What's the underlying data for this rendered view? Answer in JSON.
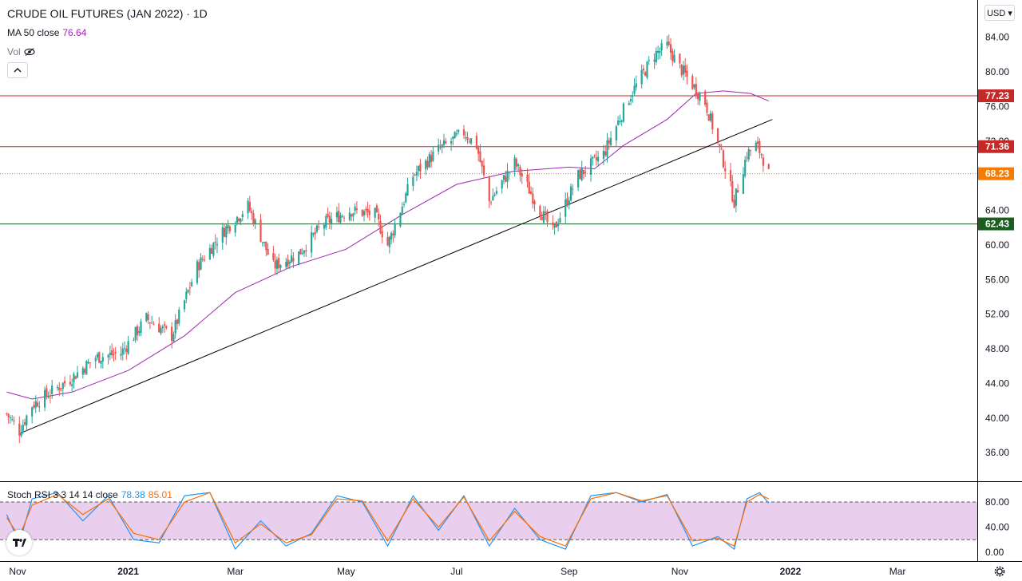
{
  "title": "CRUDE OIL FUTURES (JAN 2022) · 1D",
  "ma": {
    "label": "MA 50 close",
    "value": "76.64",
    "color": "#9c27b0"
  },
  "vol": {
    "label": "Vol",
    "icon": "eye-hidden-icon"
  },
  "currency": "USD",
  "collapse_icon": "chevron-up-icon",
  "settings_icon": "gear-icon",
  "logo_icon": "tradingview-logo-icon",
  "colors": {
    "up": "#26a69a",
    "down": "#ef5350",
    "resistance": "#c62828",
    "support": "#1b5e20",
    "trendline": "#000000",
    "ma": "#9c27b0",
    "stoch_k": "#2196f3",
    "stoch_d": "#ff6d00",
    "rsi_band": "#e1bee7"
  },
  "stoch": {
    "label": "Stoch RSI 3 3 14 14 close",
    "k": "78.38",
    "d": "85.01"
  },
  "chart_data": [
    {
      "type": "candlestick",
      "title": "CRUDE OIL FUTURES (JAN 2022) · 1D",
      "x_ticks": [
        "Nov",
        "2021",
        "Mar",
        "May",
        "Jul",
        "Sep",
        "Nov",
        "2022",
        "Mar"
      ],
      "y_ticks": [
        "84.00",
        "80.00",
        "76.00",
        "72.00",
        "68.00",
        "64.00",
        "60.00",
        "56.00",
        "52.00",
        "48.00",
        "44.00",
        "40.00",
        "36.00"
      ],
      "ylim": [
        32.7,
        88.3
      ],
      "price_markers": [
        {
          "label": "77.23",
          "value": 77.23,
          "color": "#c62828",
          "line": "solid"
        },
        {
          "label": "71.36",
          "value": 71.36,
          "color": "#c62828",
          "line": "solid"
        },
        {
          "label": "68.23",
          "value": 68.23,
          "color": "#f57c00",
          "line": "dotted"
        },
        {
          "label": "62.43",
          "value": 62.43,
          "color": "#1b5e20",
          "line": "solid"
        }
      ],
      "trendline": {
        "from": {
          "date": "2020-11-02",
          "price": 38.2
        },
        "to": {
          "date": "2021-12-22",
          "price": 74.5
        }
      },
      "close_path": [
        [
          "2020-10-26",
          40.5
        ],
        [
          "2020-11-02",
          38.5
        ],
        [
          "2020-11-09",
          41.5
        ],
        [
          "2020-11-16",
          42.5
        ],
        [
          "2020-11-30",
          44.5
        ],
        [
          "2020-12-14",
          47.0
        ],
        [
          "2020-12-28",
          47.5
        ],
        [
          "2021-01-11",
          51.5
        ],
        [
          "2021-01-25",
          49.5
        ],
        [
          "2021-02-08",
          57.5
        ],
        [
          "2021-02-22",
          61.5
        ],
        [
          "2021-03-08",
          64.5
        ],
        [
          "2021-03-22",
          57.5
        ],
        [
          "2021-04-05",
          59.0
        ],
        [
          "2021-04-19",
          62.5
        ],
        [
          "2021-05-03",
          64.0
        ],
        [
          "2021-05-17",
          63.5
        ],
        [
          "2021-05-24",
          60.0
        ],
        [
          "2021-06-07",
          68.0
        ],
        [
          "2021-06-21",
          71.0
        ],
        [
          "2021-07-05",
          73.0
        ],
        [
          "2021-07-12",
          71.5
        ],
        [
          "2021-07-19",
          65.0
        ],
        [
          "2021-08-02",
          69.5
        ],
        [
          "2021-08-16",
          64.0
        ],
        [
          "2021-08-23",
          61.5
        ],
        [
          "2021-09-06",
          68.0
        ],
        [
          "2021-09-20",
          70.5
        ],
        [
          "2021-10-04",
          77.0
        ],
        [
          "2021-10-18",
          82.0
        ],
        [
          "2021-10-25",
          83.0
        ],
        [
          "2021-11-01",
          80.5
        ],
        [
          "2021-11-08",
          78.5
        ],
        [
          "2021-11-15",
          76.5
        ],
        [
          "2021-11-26",
          69.0
        ],
        [
          "2021-12-01",
          65.0
        ],
        [
          "2021-12-08",
          70.5
        ],
        [
          "2021-12-13",
          71.5
        ],
        [
          "2021-12-16",
          70.5
        ],
        [
          "2021-12-20",
          68.2
        ]
      ],
      "ma50_path": [
        [
          "2020-10-26",
          43.0
        ],
        [
          "2020-11-09",
          42.2
        ],
        [
          "2020-12-01",
          43.0
        ],
        [
          "2021-01-01",
          45.5
        ],
        [
          "2021-02-01",
          49.5
        ],
        [
          "2021-03-01",
          54.5
        ],
        [
          "2021-04-01",
          57.5
        ],
        [
          "2021-05-01",
          59.5
        ],
        [
          "2021-06-01",
          63.5
        ],
        [
          "2021-07-01",
          67.0
        ],
        [
          "2021-08-01",
          68.5
        ],
        [
          "2021-09-01",
          69.0
        ],
        [
          "2021-09-15",
          68.8
        ],
        [
          "2021-10-01",
          71.5
        ],
        [
          "2021-10-25",
          74.5
        ],
        [
          "2021-11-10",
          77.5
        ],
        [
          "2021-11-25",
          77.8
        ],
        [
          "2021-12-10",
          77.5
        ],
        [
          "2021-12-20",
          76.64
        ]
      ]
    },
    {
      "type": "line",
      "title": "Stoch RSI 3 3 14 14 close",
      "y_ticks": [
        "80.00",
        "40.00",
        "0.00"
      ],
      "ylim": [
        0,
        100
      ],
      "band": [
        20,
        80
      ],
      "series": [
        {
          "name": "K",
          "last": 78.38,
          "values": [
            [
              "2020-10-26",
              60
            ],
            [
              "2020-11-02",
              15
            ],
            [
              "2020-11-09",
              85
            ],
            [
              "2020-11-23",
              95
            ],
            [
              "2020-12-07",
              50
            ],
            [
              "2020-12-21",
              90
            ],
            [
              "2021-01-04",
              20
            ],
            [
              "2021-01-18",
              15
            ],
            [
              "2021-02-01",
              90
            ],
            [
              "2021-02-15",
              95
            ],
            [
              "2021-03-01",
              5
            ],
            [
              "2021-03-15",
              50
            ],
            [
              "2021-03-29",
              10
            ],
            [
              "2021-04-12",
              30
            ],
            [
              "2021-04-26",
              90
            ],
            [
              "2021-05-10",
              80
            ],
            [
              "2021-05-24",
              10
            ],
            [
              "2021-06-07",
              90
            ],
            [
              "2021-06-21",
              35
            ],
            [
              "2021-07-05",
              90
            ],
            [
              "2021-07-19",
              10
            ],
            [
              "2021-08-02",
              70
            ],
            [
              "2021-08-16",
              20
            ],
            [
              "2021-08-30",
              5
            ],
            [
              "2021-09-13",
              90
            ],
            [
              "2021-09-27",
              95
            ],
            [
              "2021-10-11",
              80
            ],
            [
              "2021-10-25",
              92
            ],
            [
              "2021-11-08",
              10
            ],
            [
              "2021-11-22",
              25
            ],
            [
              "2021-12-01",
              5
            ],
            [
              "2021-12-08",
              85
            ],
            [
              "2021-12-15",
              95
            ],
            [
              "2021-12-20",
              78.38
            ]
          ]
        },
        {
          "name": "D",
          "last": 85.01,
          "values": [
            [
              "2020-10-26",
              55
            ],
            [
              "2020-11-02",
              25
            ],
            [
              "2020-11-09",
              75
            ],
            [
              "2020-11-23",
              92
            ],
            [
              "2020-12-07",
              60
            ],
            [
              "2020-12-21",
              85
            ],
            [
              "2021-01-04",
              30
            ],
            [
              "2021-01-18",
              20
            ],
            [
              "2021-02-01",
              80
            ],
            [
              "2021-02-15",
              95
            ],
            [
              "2021-03-01",
              15
            ],
            [
              "2021-03-15",
              45
            ],
            [
              "2021-03-29",
              15
            ],
            [
              "2021-04-12",
              28
            ],
            [
              "2021-04-26",
              85
            ],
            [
              "2021-05-10",
              82
            ],
            [
              "2021-05-24",
              18
            ],
            [
              "2021-06-07",
              85
            ],
            [
              "2021-06-21",
              40
            ],
            [
              "2021-07-05",
              88
            ],
            [
              "2021-07-19",
              18
            ],
            [
              "2021-08-02",
              65
            ],
            [
              "2021-08-16",
              25
            ],
            [
              "2021-08-30",
              10
            ],
            [
              "2021-09-13",
              85
            ],
            [
              "2021-09-27",
              95
            ],
            [
              "2021-10-11",
              82
            ],
            [
              "2021-10-25",
              90
            ],
            [
              "2021-11-08",
              18
            ],
            [
              "2021-11-22",
              22
            ],
            [
              "2021-12-01",
              10
            ],
            [
              "2021-12-08",
              80
            ],
            [
              "2021-12-15",
              92
            ],
            [
              "2021-12-20",
              85.01
            ]
          ]
        }
      ]
    }
  ]
}
